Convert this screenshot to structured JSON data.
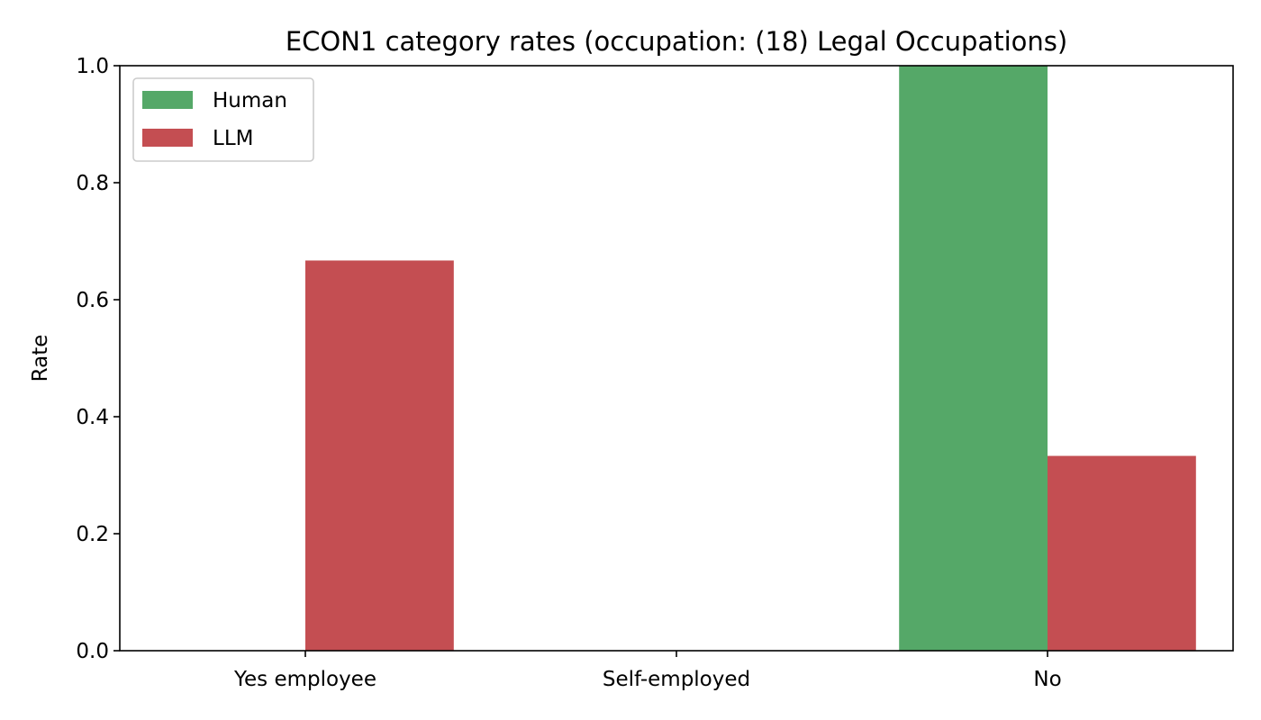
{
  "chart_data": {
    "type": "bar",
    "title": "ECON1 category rates (occupation: (18) Legal Occupations)",
    "xlabel": "",
    "ylabel": "Rate",
    "categories": [
      "Yes employee",
      "Self-employed",
      "No"
    ],
    "series": [
      {
        "name": "Human",
        "color": "#55a868",
        "values": [
          0.0,
          0.0,
          1.0
        ]
      },
      {
        "name": "LLM",
        "color": "#c44e52",
        "values": [
          0.667,
          0.0,
          0.333
        ]
      }
    ],
    "ylim": [
      0,
      1.0
    ],
    "yticks": [
      "0.0",
      "0.2",
      "0.4",
      "0.6",
      "0.8",
      "1.0"
    ],
    "grid": false,
    "legend_position": "top-left"
  }
}
